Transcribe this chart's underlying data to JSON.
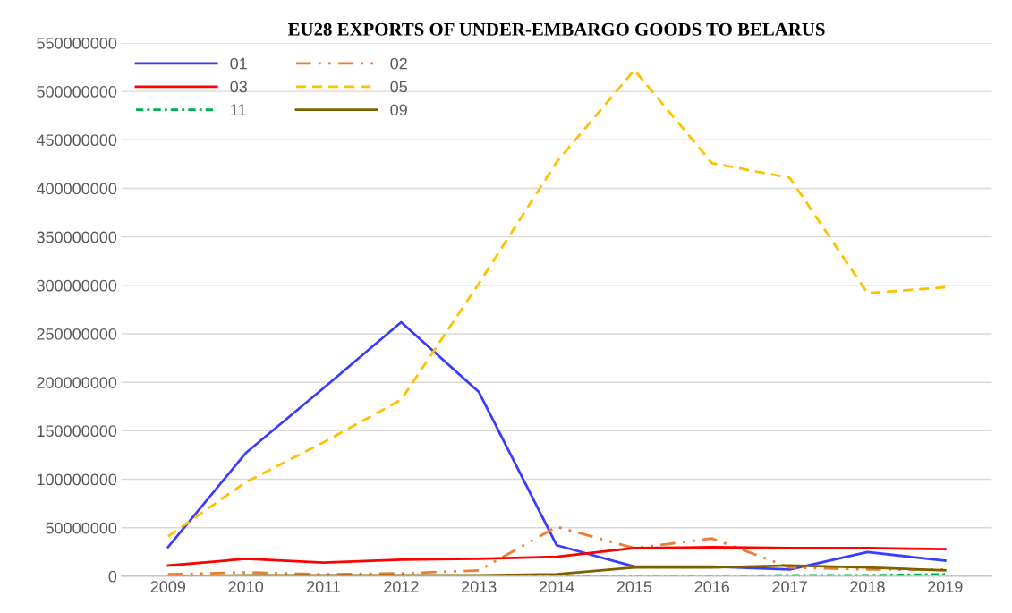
{
  "chart_data": {
    "type": "line",
    "title": "EU28 EXPORTS OF UNDER-EMBARGO GOODS TO BELARUS",
    "categories": [
      "2009",
      "2010",
      "2011",
      "2012",
      "2013",
      "2014",
      "2015",
      "2016",
      "2017",
      "2018",
      "2019"
    ],
    "series": [
      {
        "name": "01",
        "color": "#3b3bff",
        "line_style": "solid",
        "values": [
          30000000,
          127000000,
          194000000,
          262000000,
          190000000,
          32000000,
          10000000,
          10000000,
          7000000,
          25000000,
          16000000
        ]
      },
      {
        "name": "02",
        "color": "#ed7d31",
        "line_style": "dashdotdot",
        "values": [
          2000000,
          4000000,
          2000000,
          3000000,
          6000000,
          51000000,
          29000000,
          39000000,
          9000000,
          7000000,
          7000000
        ]
      },
      {
        "name": "03",
        "color": "#ff0000",
        "line_style": "solid",
        "values": [
          11000000,
          18000000,
          14000000,
          17000000,
          18000000,
          20000000,
          29000000,
          30000000,
          29000000,
          29000000,
          28000000
        ]
      },
      {
        "name": "05",
        "color": "#ffc000",
        "line_style": "dashed",
        "values": [
          41000000,
          97000000,
          138000000,
          182000000,
          302000000,
          427000000,
          522000000,
          426000000,
          411000000,
          292000000,
          298000000
        ]
      },
      {
        "name": "11",
        "color": "#00b050",
        "line_style": "dashdot",
        "values": [
          null,
          null,
          null,
          null,
          0,
          0,
          0,
          0,
          1000000,
          1000000,
          2000000
        ]
      },
      {
        "name": "09",
        "color": "#7f6000",
        "line_style": "solid",
        "values": [
          0,
          1000000,
          1000000,
          1000000,
          1000000,
          2000000,
          9000000,
          9000000,
          11000000,
          9000000,
          6000000
        ]
      }
    ],
    "ylim": [
      0,
      550000000
    ],
    "yticks": [
      0,
      50000000,
      100000000,
      150000000,
      200000000,
      250000000,
      300000000,
      350000000,
      400000000,
      450000000,
      500000000,
      550000000
    ],
    "grid": "y",
    "legend": "top left",
    "marker": "none"
  }
}
